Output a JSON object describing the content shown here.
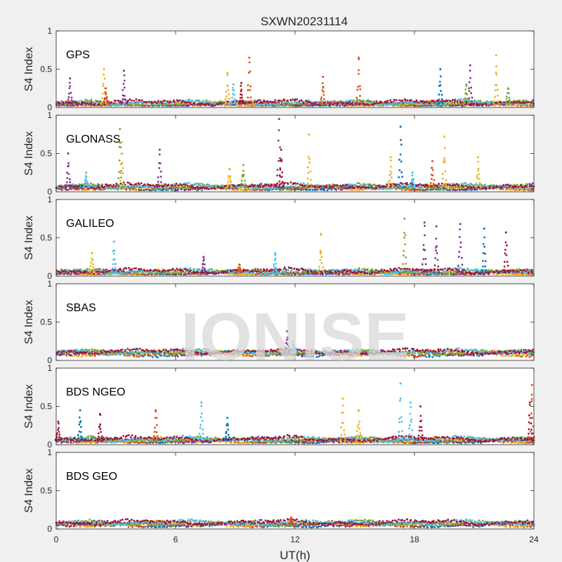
{
  "title": "SXWN20231114",
  "watermark": "IONISE",
  "xlabel": "UT(h)",
  "ylabel": "S4 Index",
  "xlim": [
    0,
    24
  ],
  "ylim": [
    0,
    1
  ],
  "xticks": [
    "0",
    "6",
    "12",
    "18",
    "24"
  ],
  "yticks": [
    "0",
    "0.5",
    "1"
  ],
  "colors": [
    "#0072bd",
    "#d95319",
    "#edb120",
    "#7e2f8e",
    "#77ac30",
    "#4dbeee",
    "#a2142f"
  ],
  "chart_data": [
    {
      "type": "scatter",
      "label": "GPS",
      "baseline": 0.05,
      "peaks": [
        {
          "x": 0.7,
          "y": 0.38,
          "color": "#7e2f8e"
        },
        {
          "x": 2.4,
          "y": 0.5,
          "color": "#edb120"
        },
        {
          "x": 2.5,
          "y": 0.25,
          "color": "#d95319"
        },
        {
          "x": 3.4,
          "y": 0.48,
          "color": "#7e2f8e"
        },
        {
          "x": 8.6,
          "y": 0.45,
          "color": "#edb120"
        },
        {
          "x": 8.9,
          "y": 0.3,
          "color": "#4dbeee"
        },
        {
          "x": 9.7,
          "y": 0.65,
          "color": "#d95319"
        },
        {
          "x": 9.3,
          "y": 0.32,
          "color": "#a2142f"
        },
        {
          "x": 13.4,
          "y": 0.4,
          "color": "#d95319"
        },
        {
          "x": 15.2,
          "y": 0.65,
          "color": "#d95319"
        },
        {
          "x": 19.3,
          "y": 0.5,
          "color": "#0072bd"
        },
        {
          "x": 20.8,
          "y": 0.55,
          "color": "#7e2f8e"
        },
        {
          "x": 20.6,
          "y": 0.3,
          "color": "#77ac30"
        },
        {
          "x": 22.1,
          "y": 0.68,
          "color": "#edb120"
        },
        {
          "x": 22.7,
          "y": 0.25,
          "color": "#77ac30"
        }
      ]
    },
    {
      "type": "scatter",
      "label": "GLONASS",
      "baseline": 0.06,
      "peaks": [
        {
          "x": 0.6,
          "y": 0.5,
          "color": "#7e2f8e"
        },
        {
          "x": 1.5,
          "y": 0.25,
          "color": "#4dbeee"
        },
        {
          "x": 3.2,
          "y": 0.82,
          "color": "#77ac30"
        },
        {
          "x": 3.3,
          "y": 0.65,
          "color": "#edb120"
        },
        {
          "x": 5.2,
          "y": 0.55,
          "color": "#7e2f8e"
        },
        {
          "x": 8.7,
          "y": 0.3,
          "color": "#edb120"
        },
        {
          "x": 9.4,
          "y": 0.35,
          "color": "#77ac30"
        },
        {
          "x": 11.2,
          "y": 0.95,
          "color": "#7e2f8e"
        },
        {
          "x": 11.3,
          "y": 0.55,
          "color": "#a2142f"
        },
        {
          "x": 12.7,
          "y": 0.75,
          "color": "#edb120"
        },
        {
          "x": 16.8,
          "y": 0.45,
          "color": "#edb120"
        },
        {
          "x": 17.3,
          "y": 0.85,
          "color": "#0072bd"
        },
        {
          "x": 17.9,
          "y": 0.25,
          "color": "#4dbeee"
        },
        {
          "x": 18.9,
          "y": 0.4,
          "color": "#d95319"
        },
        {
          "x": 19.5,
          "y": 0.72,
          "color": "#edb120"
        },
        {
          "x": 21.2,
          "y": 0.45,
          "color": "#edb120"
        }
      ]
    },
    {
      "type": "scatter",
      "label": "GALILEO",
      "baseline": 0.05,
      "peaks": [
        {
          "x": 1.8,
          "y": 0.3,
          "color": "#edb120"
        },
        {
          "x": 2.9,
          "y": 0.45,
          "color": "#4dbeee"
        },
        {
          "x": 7.4,
          "y": 0.25,
          "color": "#7e2f8e"
        },
        {
          "x": 9.2,
          "y": 0.15,
          "color": "#d95319"
        },
        {
          "x": 11.0,
          "y": 0.3,
          "color": "#4dbeee"
        },
        {
          "x": 13.3,
          "y": 0.55,
          "color": "#edb120"
        },
        {
          "x": 17.5,
          "y": 0.75,
          "color": "#77ac30"
        },
        {
          "x": 18.5,
          "y": 0.7,
          "color": "#7e2f8e"
        },
        {
          "x": 19.1,
          "y": 0.65,
          "color": "#7e2f8e"
        },
        {
          "x": 20.3,
          "y": 0.68,
          "color": "#7e2f8e"
        },
        {
          "x": 21.5,
          "y": 0.62,
          "color": "#0072bd"
        },
        {
          "x": 22.6,
          "y": 0.57,
          "color": "#a2142f"
        }
      ]
    },
    {
      "type": "scatter",
      "label": "SBAS",
      "baseline": 0.1,
      "peaks": [
        {
          "x": 11.6,
          "y": 0.38,
          "color": "#7e2f8e"
        },
        {
          "x": 11.9,
          "y": 0.25,
          "color": "#4dbeee"
        }
      ]
    },
    {
      "type": "scatter",
      "label": "BDS NGEO",
      "baseline": 0.06,
      "peaks": [
        {
          "x": 0.1,
          "y": 0.3,
          "color": "#a2142f"
        },
        {
          "x": 1.2,
          "y": 0.45,
          "color": "#0072bd"
        },
        {
          "x": 2.2,
          "y": 0.4,
          "color": "#a2142f"
        },
        {
          "x": 5.0,
          "y": 0.45,
          "color": "#d95319"
        },
        {
          "x": 7.3,
          "y": 0.55,
          "color": "#4dbeee"
        },
        {
          "x": 8.6,
          "y": 0.35,
          "color": "#0072bd"
        },
        {
          "x": 14.4,
          "y": 0.6,
          "color": "#edb120"
        },
        {
          "x": 15.2,
          "y": 0.45,
          "color": "#edb120"
        },
        {
          "x": 17.3,
          "y": 0.8,
          "color": "#4dbeee"
        },
        {
          "x": 17.8,
          "y": 0.55,
          "color": "#4dbeee"
        },
        {
          "x": 18.3,
          "y": 0.5,
          "color": "#a2142f"
        },
        {
          "x": 23.9,
          "y": 0.78,
          "color": "#d95319"
        },
        {
          "x": 23.8,
          "y": 0.55,
          "color": "#a2142f"
        }
      ]
    },
    {
      "type": "scatter",
      "label": "BDS GEO",
      "baseline": 0.07,
      "peaks": [
        {
          "x": 11.8,
          "y": 0.15,
          "color": "#d95319"
        }
      ]
    }
  ]
}
